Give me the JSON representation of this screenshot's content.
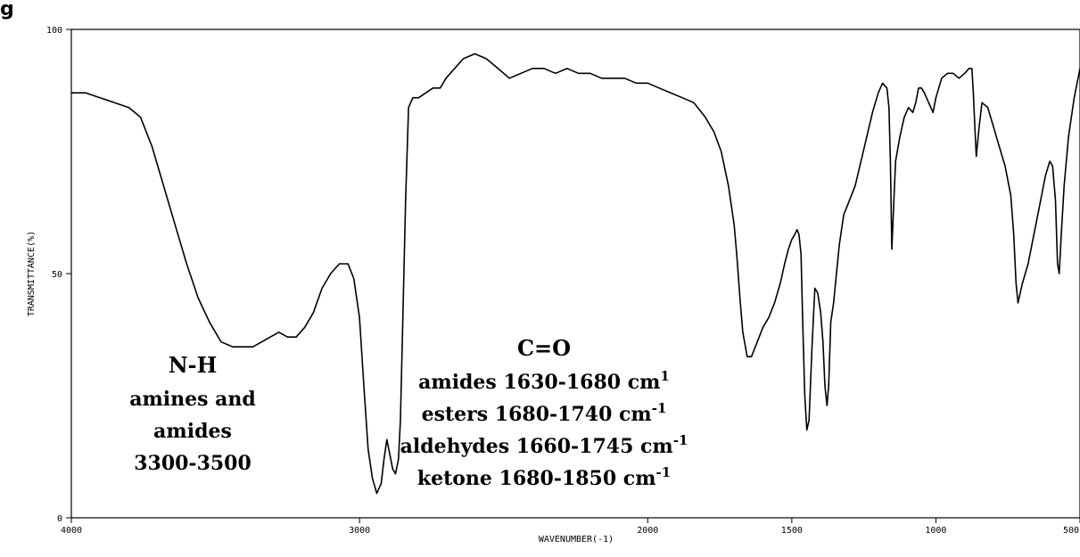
{
  "corner_label": "g",
  "chart_data": {
    "type": "line",
    "title": "",
    "xlabel": "WAVENUMBER(-1)",
    "ylabel": "TRANSMITTANCE(%)",
    "xlim": [
      4000,
      500
    ],
    "ylim": [
      0,
      100
    ],
    "x_reversed": true,
    "x_ticks": [
      4000,
      3000,
      2000,
      1500,
      1000,
      500
    ],
    "x_tick_labels": [
      "4000",
      "3000",
      "2000",
      "1500",
      "1000",
      "500"
    ],
    "y_ticks": [
      0,
      50,
      100
    ],
    "y_tick_labels": [
      "0",
      "50",
      "100"
    ],
    "grid": false,
    "legend": "none",
    "line_color": "#000000",
    "series": [
      {
        "x": [
          4000,
          3950,
          3900,
          3850,
          3800,
          3760,
          3720,
          3680,
          3640,
          3600,
          3560,
          3520,
          3480,
          3440,
          3400,
          3370,
          3340,
          3310,
          3280,
          3250,
          3220,
          3190,
          3160,
          3130,
          3100,
          3070,
          3040,
          3020,
          3000,
          2985,
          2970,
          2955,
          2940,
          2925,
          2915,
          2905,
          2895,
          2885,
          2875,
          2865,
          2858,
          2850,
          2840,
          2830,
          2815,
          2795,
          2770,
          2745,
          2720,
          2700,
          2670,
          2640,
          2600,
          2560,
          2520,
          2480,
          2440,
          2400,
          2360,
          2320,
          2280,
          2240,
          2200,
          2160,
          2120,
          2080,
          2040,
          2000,
          1960,
          1920,
          1880,
          1840,
          1800,
          1770,
          1745,
          1720,
          1700,
          1690,
          1680,
          1670,
          1655,
          1640,
          1620,
          1600,
          1580,
          1560,
          1540,
          1525,
          1512,
          1500,
          1490,
          1482,
          1475,
          1468,
          1462,
          1455,
          1448,
          1440,
          1430,
          1420,
          1410,
          1400,
          1392,
          1385,
          1378,
          1372,
          1365,
          1355,
          1345,
          1335,
          1320,
          1300,
          1280,
          1260,
          1240,
          1220,
          1200,
          1185,
          1170,
          1163,
          1158,
          1153,
          1148,
          1140,
          1125,
          1110,
          1095,
          1080,
          1070,
          1060,
          1050,
          1040,
          1025,
          1010,
          1000,
          980,
          960,
          940,
          920,
          900,
          885,
          875,
          870,
          865,
          860,
          850,
          840,
          820,
          800,
          780,
          760,
          740,
          730,
          722,
          715,
          700,
          680,
          660,
          640,
          620,
          605,
          595,
          585,
          578,
          572,
          565,
          555,
          540,
          520,
          500
        ],
        "y": [
          87,
          87,
          86,
          85,
          84,
          82,
          76,
          68,
          60,
          52,
          45,
          40,
          36,
          35,
          35,
          35,
          36,
          37,
          38,
          37,
          37,
          39,
          42,
          47,
          50,
          52,
          52,
          49,
          41,
          27,
          14,
          8,
          5,
          7,
          12,
          16,
          13,
          10,
          9,
          12,
          20,
          40,
          65,
          84,
          86,
          86,
          87,
          88,
          88,
          90,
          92,
          94,
          95,
          94,
          92,
          90,
          91,
          92,
          92,
          91,
          92,
          91,
          91,
          90,
          90,
          90,
          89,
          89,
          88,
          87,
          86,
          85,
          82,
          79,
          75,
          68,
          60,
          53,
          45,
          38,
          33,
          33,
          36,
          39,
          41,
          44,
          48,
          52,
          55,
          57,
          58,
          59,
          58,
          54,
          40,
          25,
          18,
          20,
          35,
          47,
          46,
          42,
          36,
          27,
          23,
          27,
          40,
          44,
          50,
          56,
          62,
          65,
          68,
          73,
          78,
          83,
          87,
          89,
          88,
          84,
          73,
          55,
          62,
          73,
          78,
          82,
          84,
          83,
          85,
          88,
          88,
          87,
          85,
          83,
          86,
          90,
          91,
          91,
          90,
          91,
          92,
          92,
          87,
          80,
          74,
          80,
          85,
          84,
          80,
          76,
          72,
          66,
          58,
          48,
          44,
          48,
          52,
          58,
          64,
          70,
          73,
          72,
          65,
          52,
          50,
          58,
          68,
          78,
          86,
          92
        ]
      }
    ],
    "annotations": [
      {
        "title": "N-H",
        "lines": [
          {
            "text": "amines and",
            "sup": ""
          },
          {
            "text": "amides",
            "sup": ""
          },
          {
            "text": "3300-3500",
            "sup": ""
          }
        ]
      },
      {
        "title": "C=O",
        "lines": [
          {
            "text": "amides 1630-1680 cm",
            "sup": "1"
          },
          {
            "text": "esters 1680-1740 cm",
            "sup": "-1"
          },
          {
            "text": "aldehydes 1660-1745 cm",
            "sup": "-1"
          },
          {
            "text": "ketone 1680-1850 cm",
            "sup": "-1"
          }
        ]
      }
    ]
  }
}
